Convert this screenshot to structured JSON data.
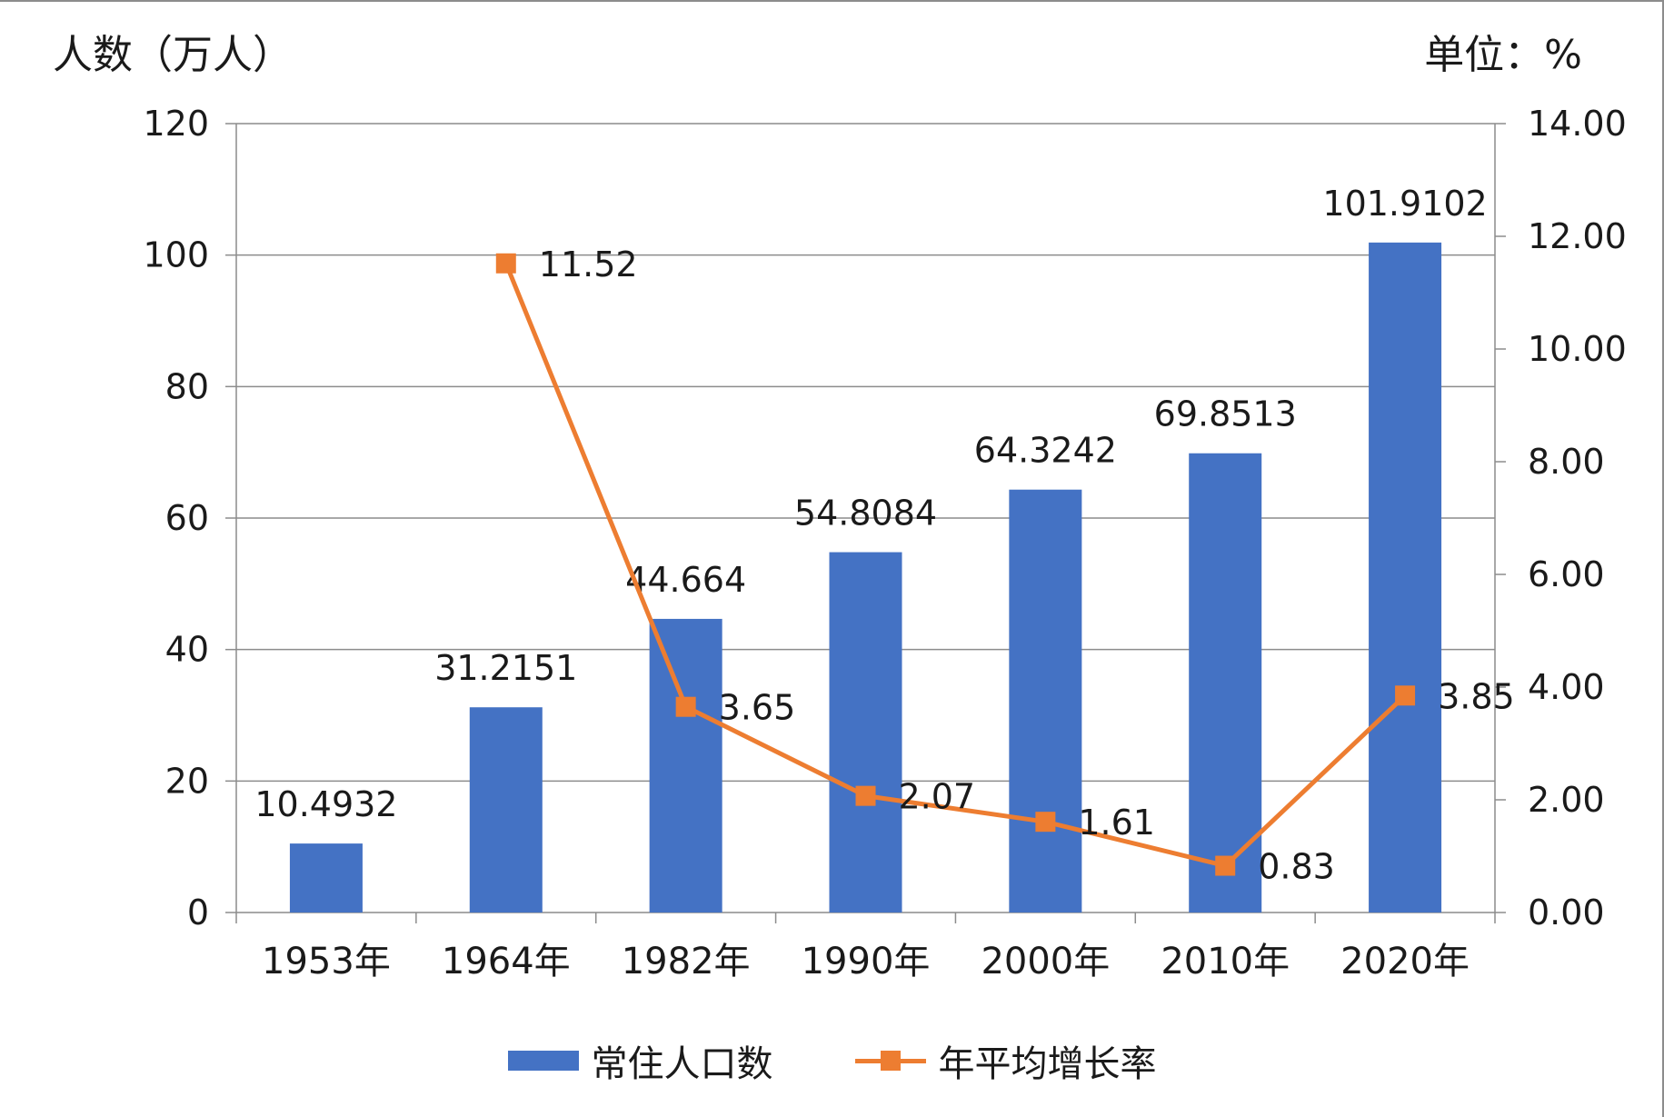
{
  "chart_data": {
    "type": "bar+line",
    "y_left_label": "人数（万人）",
    "y_right_label": "单位：%",
    "y_left_ticks": [
      "0",
      "20",
      "40",
      "60",
      "80",
      "100",
      "120"
    ],
    "y_right_ticks": [
      "0.00",
      "2.00",
      "4.00",
      "6.00",
      "8.00",
      "10.00",
      "12.00",
      "14.00"
    ],
    "ylim_left": [
      0,
      120
    ],
    "ylim_right": [
      0,
      14
    ],
    "categories": [
      "1953年",
      "1964年",
      "1982年",
      "1990年",
      "2000年",
      "2010年",
      "2020年"
    ],
    "series": [
      {
        "name": "常住人口数",
        "type": "bar",
        "axis": "left",
        "color": "#4472c4",
        "values": [
          10.4932,
          31.2151,
          44.664,
          54.8084,
          64.3242,
          69.8513,
          101.9102
        ],
        "labels": [
          "10.4932",
          "31.2151",
          "44.664",
          "54.8084",
          "64.3242",
          "69.8513",
          "101.9102"
        ]
      },
      {
        "name": "年平均增长率",
        "type": "line",
        "axis": "right",
        "color": "#ed7d31",
        "values": [
          null,
          11.52,
          3.65,
          2.07,
          1.61,
          0.83,
          3.85
        ],
        "labels": [
          "",
          "11.52",
          "3.65",
          "2.07",
          "1.61",
          "0.83",
          "3.85"
        ]
      }
    ],
    "grid": "horizontal",
    "legend_position": "bottom"
  }
}
